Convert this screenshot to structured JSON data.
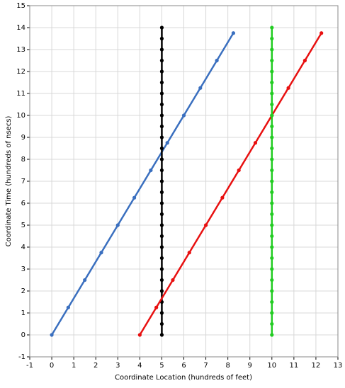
{
  "chart_data": {
    "type": "line",
    "xlabel": "Coordinate Location (hundreds of feet)",
    "ylabel": "Coordinate Time (hundreds of nsecs)",
    "xlim": [
      -1,
      13
    ],
    "ylim": [
      -1,
      15
    ],
    "xticks": [
      -1,
      0,
      1,
      2,
      3,
      4,
      5,
      6,
      7,
      8,
      9,
      10,
      11,
      12,
      13
    ],
    "yticks": [
      -1,
      0,
      1,
      2,
      3,
      4,
      5,
      6,
      7,
      8,
      9,
      10,
      11,
      12,
      13,
      14,
      15
    ],
    "grid": true,
    "series": [
      {
        "color": "#3a6fbf",
        "x": [
          0,
          0.75,
          1.5,
          2.25,
          3,
          3.75,
          4.5,
          5.25,
          6,
          6.75,
          7.5,
          8.25
        ],
        "values": [
          0,
          1.25,
          2.5,
          3.75,
          5,
          6.25,
          7.5,
          8.75,
          10,
          11.25,
          12.5,
          13.75
        ]
      },
      {
        "color": "#000000",
        "x": [
          5,
          5,
          5,
          5,
          5,
          5,
          5,
          5,
          5,
          5,
          5,
          5,
          5,
          5,
          5,
          5,
          5,
          5,
          5,
          5,
          5,
          5,
          5,
          5,
          5,
          5,
          5,
          5,
          5
        ],
        "values": [
          0,
          0.5,
          1,
          1.5,
          2,
          2.5,
          3,
          3.5,
          4,
          4.5,
          5,
          5.5,
          6,
          6.5,
          7,
          7.5,
          8,
          8.5,
          9,
          9.5,
          10,
          10.5,
          11,
          11.5,
          12,
          12.5,
          13,
          13.5,
          14
        ]
      },
      {
        "color": "#e81010",
        "x": [
          4,
          4.75,
          5.5,
          6.25,
          7,
          7.75,
          8.5,
          9.25,
          10,
          10.75,
          11.5,
          12.25
        ],
        "values": [
          0,
          1.25,
          2.5,
          3.75,
          5,
          6.25,
          7.5,
          8.75,
          10,
          11.25,
          12.5,
          13.75
        ]
      },
      {
        "color": "#22cc22",
        "x": [
          10,
          10,
          10,
          10,
          10,
          10,
          10,
          10,
          10,
          10,
          10,
          10,
          10,
          10,
          10,
          10,
          10,
          10,
          10,
          10,
          10,
          10,
          10,
          10,
          10,
          10,
          10,
          10,
          10
        ],
        "values": [
          0,
          0.5,
          1,
          1.5,
          2,
          2.5,
          3,
          3.5,
          4,
          4.5,
          5,
          5.5,
          6,
          6.5,
          7,
          7.5,
          8,
          8.5,
          9,
          9.5,
          10,
          10.5,
          11,
          11.5,
          12,
          12.5,
          13,
          13.5,
          14
        ]
      }
    ]
  }
}
